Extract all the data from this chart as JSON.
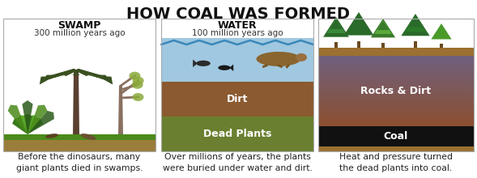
{
  "title": "HOW COAL WAS FORMED",
  "title_fontsize": 14,
  "background_color": "#ffffff",
  "panel_border_color": "#999999",
  "fig_w": 5.89,
  "fig_h": 2.2,
  "fig_dpi": 100,
  "panels": [
    {
      "id": "swamp",
      "heading": "SWAMP",
      "subheading": "300 million years ago",
      "caption": "Before the dinosaurs, many\ngiant plants died in swamps.",
      "bg_color": "#ffffff",
      "ground_color": "#9B7D3A",
      "grass_color": "#4a8a1a"
    },
    {
      "id": "water",
      "heading": "WATER",
      "subheading": "100 million years ago",
      "caption": "Over millions of years, the plants\nwere buried under water and dirt.",
      "water_color": "#a0c8e0",
      "wave_color": "#5a9ac0",
      "dirt_color": "#8B5A30",
      "deadplants_color": "#6a8030",
      "dirt_label": "Dirt",
      "plants_label": "Dead Plants",
      "bg_top_color": "#ffffff"
    },
    {
      "id": "coal",
      "heading": "",
      "subheading": "",
      "caption": "Heat and pressure turned\nthe dead plants into coal.",
      "sky_color": "#ffffff",
      "surface_color": "#9B7030",
      "rocksdir_color_top": "#8B5030",
      "rocksdir_color_bot": "#706080",
      "rocksdir_label": "Rocks & Dirt",
      "coal_color": "#111111",
      "coal_label": "Coal",
      "bottom_color": "#9B7030",
      "tree_dark": "#2a6a2a",
      "tree_mid": "#3a8a3a",
      "tree_light": "#5aaa3a"
    }
  ]
}
